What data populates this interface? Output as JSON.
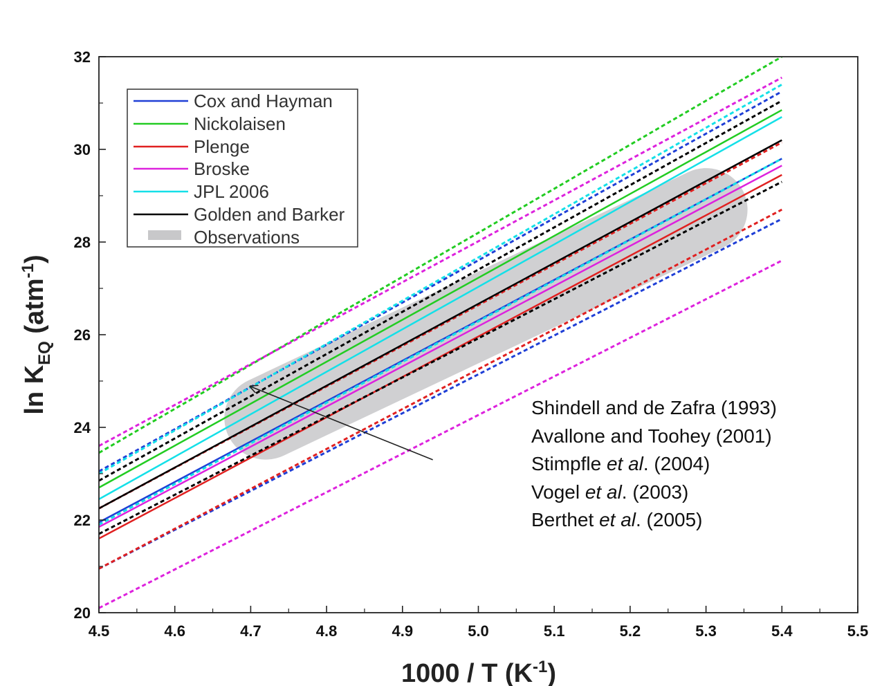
{
  "chart_data": {
    "type": "line",
    "title": "",
    "xlabel": {
      "main": "1000 / T (K",
      "sup": "-1",
      "end": ")"
    },
    "ylabel": {
      "pre": "ln K",
      "sub": "EQ",
      "mid": " (atm",
      "sup": "-1",
      "end": ")"
    },
    "xlim": [
      4.5,
      5.5
    ],
    "ylim": [
      20,
      32
    ],
    "xticks": [
      "4.5",
      "4.6",
      "4.7",
      "4.8",
      "4.9",
      "5.0",
      "5.1",
      "5.2",
      "5.3",
      "5.4",
      "5.5"
    ],
    "yticks": [
      "20",
      "22",
      "24",
      "26",
      "28",
      "30",
      "32"
    ],
    "grid": false,
    "legend_position": "top-left",
    "series": [
      {
        "name": "Cox and Hayman",
        "color": "#1f3fd6",
        "x": [
          4.5,
          5.4
        ],
        "y": [
          21.95,
          29.8
        ],
        "uncertainty": [
          {
            "x": [
              4.5,
              5.4
            ],
            "y": [
              23.05,
              31.25
            ]
          },
          {
            "x": [
              4.5,
              5.4
            ],
            "y": [
              20.95,
              28.5
            ]
          }
        ]
      },
      {
        "name": "Nickolaisen",
        "color": "#22cc22",
        "x": [
          4.5,
          5.4
        ],
        "y": [
          22.7,
          30.85
        ],
        "uncertainty": [
          {
            "x": [
              4.5,
              5.4
            ],
            "y": [
              23.45,
              32.0
            ]
          }
        ]
      },
      {
        "name": "Plenge",
        "color": "#e02020",
        "x": [
          4.5,
          5.4
        ],
        "y": [
          21.6,
          29.45
        ],
        "uncertainty": [
          {
            "x": [
              4.5,
              5.4
            ],
            "y": [
              22.25,
              30.15
            ]
          },
          {
            "x": [
              4.5,
              5.4
            ],
            "y": [
              20.95,
              28.7
            ]
          }
        ]
      },
      {
        "name": "Broske",
        "color": "#dd22dd",
        "x": [
          4.5,
          5.4
        ],
        "y": [
          21.85,
          29.65
        ],
        "uncertainty": [
          {
            "x": [
              4.5,
              5.4
            ],
            "y": [
              23.6,
              31.55
            ]
          },
          {
            "x": [
              4.5,
              5.4
            ],
            "y": [
              20.1,
              27.6
            ]
          }
        ]
      },
      {
        "name": "JPL 2006",
        "color": "#14e0e8",
        "x": [
          4.5,
          5.4
        ],
        "y": [
          22.45,
          30.7
        ],
        "uncertainty": [
          {
            "x": [
              4.5,
              5.4
            ],
            "y": [
              23.0,
              31.4
            ]
          },
          {
            "x": [
              4.5,
              5.4
            ],
            "y": [
              21.9,
              29.8
            ]
          }
        ]
      },
      {
        "name": "Golden and Barker",
        "color": "#000000",
        "x": [
          4.5,
          5.4
        ],
        "y": [
          22.25,
          30.2
        ],
        "uncertainty": [
          {
            "x": [
              4.5,
              5.4
            ],
            "y": [
              22.85,
              31.05
            ]
          },
          {
            "x": [
              4.5,
              5.4
            ],
            "y": [
              21.7,
              29.3
            ]
          }
        ]
      }
    ],
    "observations": {
      "name": "Observations",
      "color": "#c8c8ca",
      "x": [
        4.72,
        5.3
      ],
      "y": [
        24.2,
        28.7
      ]
    },
    "annotation": {
      "arrow_from": [
        4.94,
        23.3
      ],
      "arrow_to": [
        4.7,
        24.88
      ],
      "lines": [
        {
          "pre": "Shindell and de Zafra (1993)",
          "ital": "",
          "post": ""
        },
        {
          "pre": "Avallone and Toohey (2001)",
          "ital": "",
          "post": ""
        },
        {
          "pre": "Stimpfle ",
          "ital": "et al",
          "post": ". (2004)"
        },
        {
          "pre": "Vogel ",
          "ital": "et al",
          "post": ". (2003)"
        },
        {
          "pre": "Berthet ",
          "ital": "et al",
          "post": ". (2005)"
        }
      ]
    }
  }
}
